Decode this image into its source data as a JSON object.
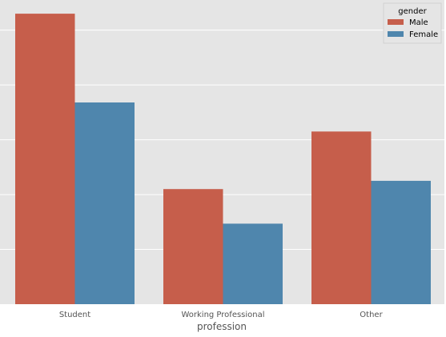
{
  "chart_data": {
    "type": "bar",
    "categories": [
      "Student",
      "Working Professional",
      "Other"
    ],
    "series": [
      {
        "name": "Male",
        "values": [
          53,
          21,
          31.5
        ],
        "color": "#c65e4b"
      },
      {
        "name": "Female",
        "values": [
          36.8,
          14.7,
          22.5
        ],
        "color": "#4f86ad"
      }
    ],
    "xlabel": "profession",
    "ylabel": "",
    "ylim": [
      0,
      55.5
    ],
    "grid": true,
    "legend": {
      "title": "gender",
      "placement": "top-right"
    },
    "colors": {
      "background": "#e5e5e5",
      "grid": "#ffffff"
    }
  }
}
